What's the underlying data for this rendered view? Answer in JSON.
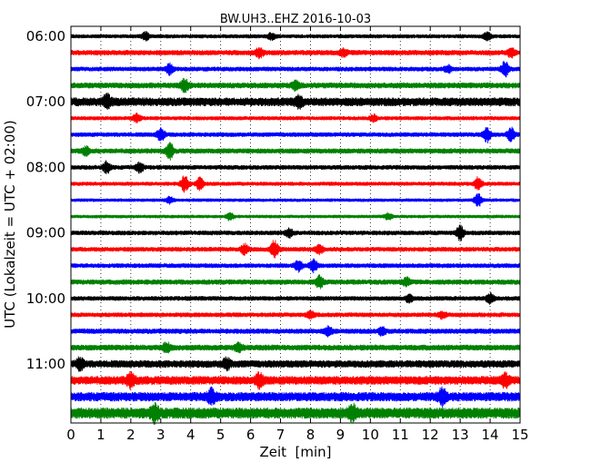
{
  "chart_data": {
    "type": "line",
    "subtype": "seismogram-dayplot",
    "title": "BW.UH3..EHZ 2016-10-03",
    "xlabel": "Zeit  [min]",
    "ylabel": "UTC (Lokalzeit = UTC + 02:00)",
    "xlim": [
      0,
      15
    ],
    "x_ticks": [
      0,
      1,
      2,
      3,
      4,
      5,
      6,
      7,
      8,
      9,
      10,
      11,
      12,
      13,
      14,
      15
    ],
    "y_tick_labels": [
      "06:00",
      "07:00",
      "08:00",
      "09:00",
      "10:00",
      "11:00"
    ],
    "trace_interval_minutes": 15,
    "traces_start": "06:00",
    "trace_count": 24,
    "color_cycle": [
      "#000000",
      "#ff0000",
      "#0000ff",
      "#008000"
    ],
    "vertical_grid": "dotted",
    "traces": [
      {
        "start": "06:00",
        "amplitude": 0.35,
        "bursts": [
          {
            "minute": 2.5,
            "amp": 0.6
          },
          {
            "minute": 6.7,
            "amp": 0.5
          },
          {
            "minute": 13.9,
            "amp": 0.6
          }
        ]
      },
      {
        "start": "06:15",
        "amplitude": 0.45,
        "bursts": [
          {
            "minute": 6.3,
            "amp": 0.7
          },
          {
            "minute": 9.1,
            "amp": 0.5
          },
          {
            "minute": 14.7,
            "amp": 0.6
          }
        ]
      },
      {
        "start": "06:30",
        "amplitude": 0.4,
        "bursts": [
          {
            "minute": 3.3,
            "amp": 0.8
          },
          {
            "minute": 12.6,
            "amp": 0.5
          },
          {
            "minute": 14.5,
            "amp": 1.2
          }
        ]
      },
      {
        "start": "06:45",
        "amplitude": 0.5,
        "bursts": [
          {
            "minute": 3.8,
            "amp": 0.9
          },
          {
            "minute": 7.5,
            "amp": 0.6
          }
        ]
      },
      {
        "start": "07:00",
        "amplitude": 0.75,
        "bursts": [
          {
            "minute": 1.2,
            "amp": 0.9
          },
          {
            "minute": 7.6,
            "amp": 0.8
          }
        ]
      },
      {
        "start": "07:15",
        "amplitude": 0.35,
        "bursts": [
          {
            "minute": 2.2,
            "amp": 0.6
          },
          {
            "minute": 10.1,
            "amp": 0.5
          }
        ]
      },
      {
        "start": "07:30",
        "amplitude": 0.4,
        "bursts": [
          {
            "minute": 3.0,
            "amp": 1.0
          },
          {
            "minute": 13.9,
            "amp": 1.1
          },
          {
            "minute": 14.7,
            "amp": 1.0
          }
        ]
      },
      {
        "start": "07:45",
        "amplitude": 0.45,
        "bursts": [
          {
            "minute": 3.3,
            "amp": 1.2
          },
          {
            "minute": 0.5,
            "amp": 0.6
          }
        ]
      },
      {
        "start": "08:00",
        "amplitude": 0.4,
        "bursts": [
          {
            "minute": 1.2,
            "amp": 0.9
          },
          {
            "minute": 2.3,
            "amp": 0.7
          }
        ]
      },
      {
        "start": "08:15",
        "amplitude": 0.35,
        "bursts": [
          {
            "minute": 3.8,
            "amp": 1.3
          },
          {
            "minute": 4.3,
            "amp": 0.9
          },
          {
            "minute": 13.6,
            "amp": 1.0
          }
        ]
      },
      {
        "start": "08:30",
        "amplitude": 0.3,
        "bursts": [
          {
            "minute": 3.3,
            "amp": 0.5
          },
          {
            "minute": 13.6,
            "amp": 1.0
          }
        ]
      },
      {
        "start": "08:45",
        "amplitude": 0.3,
        "bursts": [
          {
            "minute": 5.3,
            "amp": 0.6
          },
          {
            "minute": 10.6,
            "amp": 0.5
          }
        ]
      },
      {
        "start": "09:00",
        "amplitude": 0.4,
        "bursts": [
          {
            "minute": 13.0,
            "amp": 1.1
          },
          {
            "minute": 7.3,
            "amp": 0.6
          }
        ]
      },
      {
        "start": "09:15",
        "amplitude": 0.4,
        "bursts": [
          {
            "minute": 5.8,
            "amp": 0.8
          },
          {
            "minute": 6.8,
            "amp": 1.4
          },
          {
            "minute": 8.3,
            "amp": 0.7
          }
        ]
      },
      {
        "start": "09:30",
        "amplitude": 0.4,
        "bursts": [
          {
            "minute": 8.1,
            "amp": 1.0
          },
          {
            "minute": 7.6,
            "amp": 0.8
          }
        ]
      },
      {
        "start": "09:45",
        "amplitude": 0.45,
        "bursts": [
          {
            "minute": 8.3,
            "amp": 0.9
          },
          {
            "minute": 11.2,
            "amp": 0.6
          }
        ]
      },
      {
        "start": "10:00",
        "amplitude": 0.4,
        "bursts": [
          {
            "minute": 11.3,
            "amp": 0.6
          },
          {
            "minute": 14.0,
            "amp": 0.7
          }
        ]
      },
      {
        "start": "10:15",
        "amplitude": 0.4,
        "bursts": [
          {
            "minute": 8.0,
            "amp": 0.6
          },
          {
            "minute": 12.4,
            "amp": 0.5
          }
        ]
      },
      {
        "start": "10:30",
        "amplitude": 0.45,
        "bursts": [
          {
            "minute": 8.6,
            "amp": 0.6
          },
          {
            "minute": 10.4,
            "amp": 0.6
          }
        ]
      },
      {
        "start": "10:45",
        "amplitude": 0.5,
        "bursts": [
          {
            "minute": 3.2,
            "amp": 0.7
          },
          {
            "minute": 5.6,
            "amp": 0.6
          }
        ]
      },
      {
        "start": "11:00",
        "amplitude": 0.65,
        "bursts": [
          {
            "minute": 0.3,
            "amp": 0.9
          },
          {
            "minute": 5.2,
            "amp": 0.8
          }
        ]
      },
      {
        "start": "11:15",
        "amplitude": 0.75,
        "bursts": [
          {
            "minute": 2.0,
            "amp": 1.0
          },
          {
            "minute": 6.3,
            "amp": 1.0
          },
          {
            "minute": 14.5,
            "amp": 0.9
          }
        ]
      },
      {
        "start": "11:30",
        "amplitude": 0.8,
        "bursts": [
          {
            "minute": 4.7,
            "amp": 1.0
          },
          {
            "minute": 12.4,
            "amp": 1.1
          }
        ]
      },
      {
        "start": "11:45",
        "amplitude": 0.95,
        "bursts": [
          {
            "minute": 2.8,
            "amp": 1.1
          },
          {
            "minute": 9.4,
            "amp": 1.0
          }
        ]
      }
    ]
  }
}
